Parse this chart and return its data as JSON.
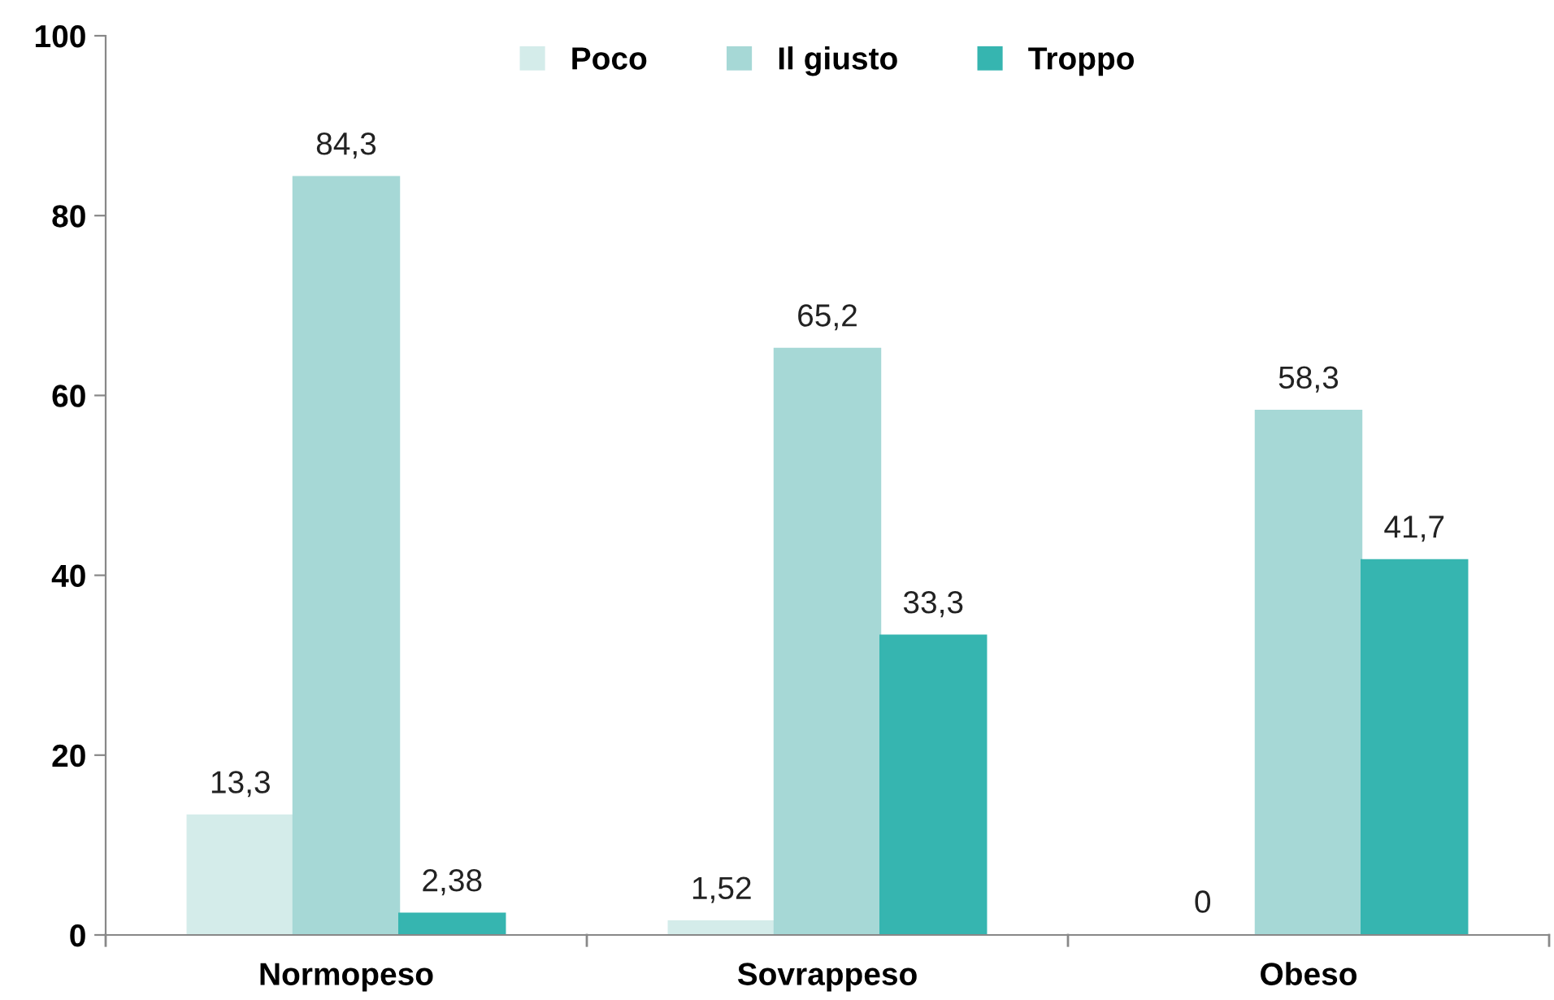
{
  "chart_data": {
    "type": "bar",
    "categories": [
      "Normopeso",
      "Sovrappeso",
      "Obeso"
    ],
    "series": [
      {
        "name": "Poco",
        "color": "#d4ecea",
        "values": [
          13.3,
          1.52,
          0
        ],
        "value_labels": [
          "13,3",
          "1,52",
          "0"
        ]
      },
      {
        "name": "Il giusto",
        "color": "#a6d8d6",
        "values": [
          84.3,
          65.2,
          58.3
        ],
        "value_labels": [
          "84,3",
          "65,2",
          "58,3"
        ]
      },
      {
        "name": "Troppo",
        "color": "#36b5b0",
        "values": [
          2.38,
          33.3,
          41.7
        ],
        "value_labels": [
          "2,38",
          "33,3",
          "41,7"
        ]
      }
    ],
    "ylim": [
      0,
      100
    ],
    "yticks": [
      0,
      20,
      40,
      60,
      80,
      100
    ],
    "grid": false,
    "legend": "top"
  }
}
